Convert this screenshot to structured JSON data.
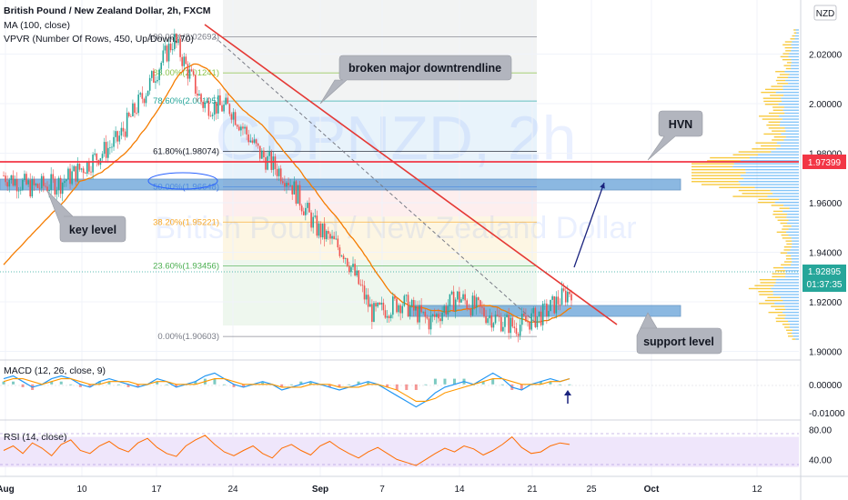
{
  "header": {
    "title": "British Pound / New Zealand Dollar, 2h, FXCM",
    "ma_label": "MA (100, close)",
    "vpvr_label": "VPVR (Number Of Rows, 450, Up/Down, 70)",
    "currency": "NZD"
  },
  "watermark": {
    "symbol": "GBPNZD, 2h",
    "name": "British Pound / New Zealand Dollar"
  },
  "annotations": {
    "broken_trendline": "broken major downtrendline",
    "hvn": "HVN",
    "key_level": "key level",
    "support_level": "support level"
  },
  "price_labels": {
    "hvn_price": "1.97399",
    "last_price": "1.92895",
    "countdown": "01:37:35"
  },
  "colors": {
    "hvn_line": "#f23645",
    "trendline": "#e53935",
    "ma": "#f57c00",
    "zone": "#5b9bd5",
    "arrow": "#1a237e",
    "macd_line": "#2196f3",
    "signal_line": "#ff9800",
    "rsi_line": "#ff6d00",
    "rsi_band": "#efe6fb",
    "last_price_bg": "#26a69a",
    "vp_up": "#2196f3",
    "vp_down": "#f5b800"
  },
  "chart_data": [
    {
      "type": "line",
      "name": "price",
      "title": "British Pound / New Zealand Dollar, 2h, FXCM",
      "x": [
        "Aug",
        "10",
        "17",
        "24",
        "Sep",
        "7",
        "14",
        "21",
        "25",
        "Oct",
        "12"
      ],
      "y_ticks": [
        "2.02000",
        "2.00000",
        "1.98000",
        "1.96000",
        "1.94000",
        "1.92000",
        "1.90000"
      ],
      "ylim": [
        1.898,
        2.04
      ],
      "path_points": [
        [
          1.971,
          1.9725
        ],
        [
          1.966,
          1.9731
        ],
        [
          1.968,
          1.97
        ],
        [
          1.976,
          1.974
        ],
        [
          1.985,
          1.99
        ],
        [
          2.005,
          2.01
        ],
        [
          2.026,
          2.02
        ],
        [
          2.0,
          1.995
        ],
        [
          1.998,
          1.99
        ],
        [
          1.98,
          1.975
        ],
        [
          1.97,
          1.96
        ],
        [
          1.95,
          1.942
        ],
        [
          1.94,
          1.92
        ],
        [
          1.915,
          1.918
        ],
        [
          1.92,
          1.915
        ],
        [
          1.912,
          1.915
        ],
        [
          1.922,
          1.93
        ],
        [
          1.915,
          1.908
        ],
        [
          1.91,
          1.918
        ],
        [
          1.915,
          1.921
        ],
        [
          1.925,
          1.929
        ]
      ],
      "fib_levels": [
        {
          "label": "100.00%(2.02692)",
          "value": 2.02692,
          "color": "#787b86"
        },
        {
          "label": "88.00%(2.01241)",
          "value": 2.01241,
          "color": "#8bc34a"
        },
        {
          "label": "78.60%(2.00105)",
          "value": 2.00105,
          "color": "#26a69a"
        },
        {
          "label": "61.80%(1.98074)",
          "value": 1.98074,
          "color": "#131722"
        },
        {
          "label": "50.00%(1.96648)",
          "value": 1.96648,
          "color": "#2962ff"
        },
        {
          "label": "38.20%(1.95221)",
          "value": 1.95221,
          "color": "#f9a825"
        },
        {
          "label": "23.60%(1.93456)",
          "value": 1.93456,
          "color": "#4caf50"
        },
        {
          "label": "0.00%(1.90603)",
          "value": 1.90603,
          "color": "#787b86"
        }
      ],
      "hvn_level": 1.97399,
      "key_level_zone": [
        1.9652,
        1.9678
      ],
      "support_zone": [
        1.9125,
        1.9163
      ],
      "last_price": 1.92895
    },
    {
      "type": "line",
      "name": "MACD (12, 26, close, 9)",
      "y_ticks": [
        "0.00000",
        "-0.01000"
      ],
      "ylim": [
        -0.012,
        0.008
      ],
      "macd": [
        0.002,
        0.003,
        0.001,
        -0.001,
        0.0,
        0.002,
        0.003,
        0.002,
        0.0,
        -0.001,
        0.001,
        0.002,
        0.001,
        0.0,
        -0.001,
        0.0,
        0.002,
        0.001,
        -0.001,
        0.0,
        0.001,
        0.003,
        0.004,
        0.002,
        0.0,
        -0.001,
        0.0,
        0.001,
        0.0,
        -0.002,
        -0.001,
        0.0,
        0.001,
        0.0,
        -0.001,
        -0.002,
        -0.001,
        0.0,
        0.001,
        0.0,
        -0.002,
        -0.004,
        -0.006,
        -0.008,
        -0.006,
        -0.003,
        -0.001,
        0.0,
        0.001,
        0.0,
        0.002,
        0.004,
        0.002,
        -0.001,
        -0.002,
        0.0,
        0.001,
        0.002,
        0.001,
        0.002
      ],
      "signal": [
        0.001,
        0.002,
        0.002,
        0.001,
        0.0,
        0.001,
        0.002,
        0.002,
        0.001,
        0.0,
        0.0,
        0.001,
        0.001,
        0.001,
        0.0,
        0.0,
        0.001,
        0.001,
        0.0,
        0.0,
        0.0,
        0.001,
        0.002,
        0.002,
        0.001,
        0.0,
        0.0,
        0.0,
        0.0,
        -0.001,
        -0.001,
        -0.001,
        0.0,
        0.0,
        0.0,
        -0.001,
        -0.001,
        -0.001,
        0.0,
        0.0,
        -0.001,
        -0.002,
        -0.004,
        -0.006,
        -0.006,
        -0.005,
        -0.003,
        -0.002,
        -0.001,
        0.0,
        0.001,
        0.002,
        0.002,
        0.001,
        0.0,
        0.0,
        0.0,
        0.001,
        0.001,
        0.002
      ]
    },
    {
      "type": "line",
      "name": "RSI (14, close)",
      "y_ticks": [
        "80.00",
        "40.00"
      ],
      "ylim": [
        20,
        90
      ],
      "band": [
        30,
        70
      ],
      "values": [
        52,
        58,
        48,
        62,
        55,
        45,
        60,
        66,
        52,
        48,
        58,
        64,
        55,
        50,
        62,
        68,
        56,
        48,
        44,
        58,
        66,
        72,
        60,
        50,
        45,
        52,
        58,
        48,
        42,
        55,
        60,
        52,
        46,
        58,
        64,
        55,
        48,
        42,
        50,
        56,
        48,
        40,
        36,
        32,
        40,
        48,
        55,
        50,
        58,
        54,
        46,
        52,
        60,
        70,
        56,
        48,
        50,
        58,
        62,
        60
      ]
    }
  ]
}
